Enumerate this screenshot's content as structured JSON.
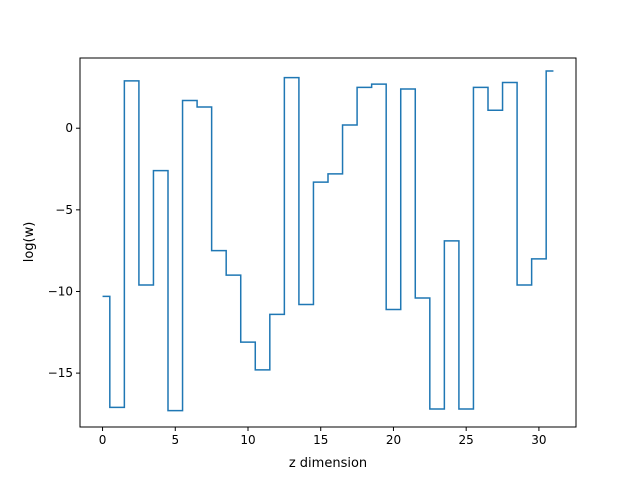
{
  "chart_data": {
    "type": "line",
    "drawstyle": "steps-mid",
    "title": "",
    "xlabel": "z dimension",
    "ylabel": "log(w)",
    "xlim": [
      -1.55,
      32.55
    ],
    "ylim": [
      -18.3,
      4.3
    ],
    "xticks": [
      0,
      5,
      10,
      15,
      20,
      25,
      30
    ],
    "yticks": [
      -15,
      -10,
      -5,
      0
    ],
    "grid": false,
    "legend": "none",
    "series": [
      {
        "color": "#1f77b4",
        "x": [
          0,
          1,
          2,
          3,
          4,
          5,
          6,
          7,
          8,
          9,
          10,
          11,
          12,
          13,
          14,
          15,
          16,
          17,
          18,
          19,
          20,
          21,
          22,
          23,
          24,
          25,
          26,
          27,
          28,
          29,
          30,
          31
        ],
        "y": [
          -10.3,
          -17.1,
          2.9,
          -9.6,
          -2.6,
          -17.3,
          1.7,
          1.3,
          -7.5,
          -9.0,
          -13.1,
          -14.8,
          -11.4,
          3.1,
          -10.8,
          -3.3,
          -2.8,
          0.2,
          2.5,
          2.7,
          -11.1,
          2.4,
          -10.4,
          -17.2,
          -6.9,
          -17.2,
          2.5,
          1.1,
          2.8,
          -9.6,
          -8.0,
          3.5
        ]
      }
    ]
  }
}
